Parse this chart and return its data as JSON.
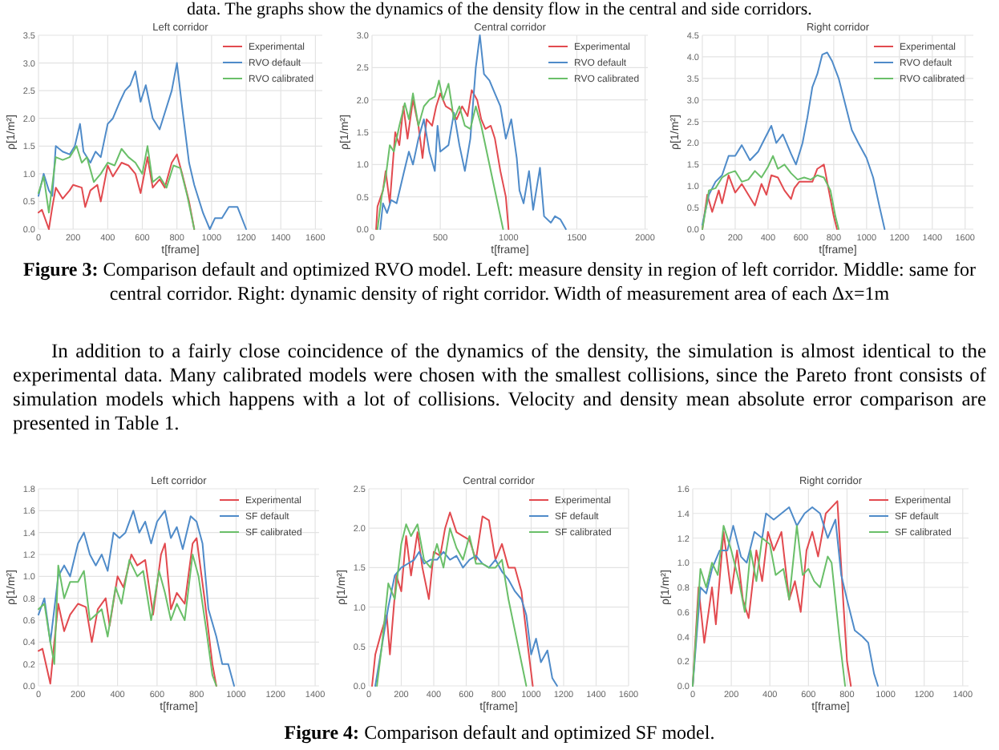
{
  "chart_data": [
    {
      "type": "line",
      "title": "Left corridor",
      "xlabel": "t[frame]",
      "ylabel": "ρ[1/m²]",
      "grid": true,
      "legend": "top right",
      "xlim": [
        0,
        1640
      ],
      "xticks": [
        0,
        200,
        400,
        600,
        800,
        1000,
        1200,
        1400,
        1600
      ],
      "ylim": [
        0,
        3.5
      ],
      "yticks": [
        {
          "value": 0,
          "label": "0.0"
        },
        0.5,
        {
          "value": 1,
          "label": "1.0"
        },
        1.5,
        {
          "value": 2,
          "label": "2.0"
        },
        2.5,
        {
          "value": 3,
          "label": "3.0"
        },
        3.5
      ],
      "annotations": [
        "data. The graphs show the dynamics of the density flow in the central and side corridors.",
        "Figure 3: Comparison default and optimized RVO model. Left: measure density in region of left corridor. Middle: same for central corridor. Right: dynamic density of right corridor. Width of measurement area of each Δx=1m",
        "In addition to a fairly close coincidence of the dynamics of the density, the simulation is almost identical to the experimental data. Many calibrated models were chosen with the smallest collisions, since the Pareto front consists of simulation models which happens with a lot of collisions. Velocity and density mean absolute error comparison are presented in Table 1."
      ],
      "series": [
        {
          "name": "Experimental",
          "color": "#e24a4f",
          "x": [
            0,
            20,
            60,
            80,
            100,
            140,
            180,
            200,
            250,
            270,
            300,
            340,
            360,
            400,
            430,
            480,
            520,
            560,
            590,
            630,
            660,
            700,
            730,
            770,
            800,
            830,
            870,
            900
          ],
          "values": [
            0.3,
            0.35,
            0.0,
            0.4,
            0.75,
            0.55,
            0.7,
            0.8,
            0.75,
            0.4,
            0.7,
            0.8,
            0.5,
            1.15,
            0.95,
            1.2,
            1.15,
            1.0,
            0.65,
            1.3,
            0.75,
            0.9,
            0.75,
            1.2,
            1.35,
            1.0,
            0.5,
            0.0
          ]
        },
        {
          "name": "RVO default",
          "color": "#4f8bc9",
          "x": [
            0,
            30,
            60,
            80,
            100,
            140,
            180,
            210,
            240,
            260,
            300,
            330,
            360,
            400,
            430,
            470,
            500,
            530,
            560,
            590,
            620,
            660,
            700,
            730,
            770,
            800,
            830,
            870,
            900,
            950,
            990,
            1020,
            1060,
            1100,
            1150,
            1200
          ],
          "values": [
            0.6,
            1.0,
            0.7,
            0.6,
            1.5,
            1.4,
            1.35,
            1.5,
            1.9,
            1.4,
            1.2,
            1.4,
            1.3,
            1.9,
            2.0,
            2.3,
            2.5,
            2.6,
            2.85,
            2.3,
            2.6,
            2.0,
            1.8,
            2.1,
            2.5,
            3.0,
            2.2,
            1.2,
            0.8,
            0.3,
            0.0,
            0.2,
            0.2,
            0.4,
            0.4,
            0.0
          ]
        },
        {
          "name": "RVO calibrated",
          "color": "#6abf69",
          "x": [
            0,
            30,
            60,
            100,
            140,
            180,
            220,
            250,
            280,
            320,
            360,
            400,
            440,
            480,
            520,
            560,
            600,
            630,
            660,
            700,
            740,
            780,
            820,
            860,
            900
          ],
          "values": [
            0.65,
            0.95,
            0.3,
            1.3,
            1.25,
            1.3,
            1.5,
            1.2,
            1.3,
            0.85,
            1.0,
            1.2,
            1.15,
            1.45,
            1.3,
            1.2,
            1.0,
            1.5,
            0.85,
            0.95,
            0.75,
            1.15,
            1.1,
            0.6,
            0.0
          ]
        }
      ]
    },
    {
      "type": "line",
      "title": "Central corridor",
      "xlabel": "t[frame]",
      "ylabel": "ρ[1/m²]",
      "grid": true,
      "legend": "top right",
      "xlim": [
        0,
        2020
      ],
      "xticks": [
        0,
        500,
        1000,
        1500,
        2000
      ],
      "ylim": [
        0,
        3.0
      ],
      "yticks": [
        {
          "value": 0,
          "label": "0.0"
        },
        0.5,
        {
          "value": 1,
          "label": "1.0"
        },
        1.5,
        {
          "value": 2,
          "label": "2.0"
        },
        2.5,
        {
          "value": 3,
          "label": "3.0"
        }
      ],
      "series": [
        {
          "name": "Experimental",
          "color": "#e24a4f",
          "x": [
            30,
            40,
            80,
            100,
            130,
            170,
            200,
            230,
            260,
            300,
            340,
            370,
            400,
            440,
            470,
            500,
            540,
            580,
            620,
            660,
            700,
            730,
            770,
            800,
            830,
            870,
            900,
            940,
            980,
            1000
          ],
          "values": [
            0.0,
            0.35,
            0.6,
            0.9,
            0.4,
            1.5,
            1.3,
            1.9,
            1.4,
            2.0,
            1.6,
            1.1,
            1.7,
            1.6,
            1.9,
            2.1,
            1.9,
            1.85,
            1.7,
            1.9,
            1.75,
            2.15,
            2.0,
            1.7,
            1.55,
            1.6,
            1.4,
            0.9,
            0.5,
            0.0
          ]
        },
        {
          "name": "RVO default",
          "color": "#4f8bc9",
          "x": [
            60,
            80,
            110,
            140,
            180,
            230,
            270,
            300,
            340,
            380,
            420,
            460,
            480,
            500,
            560,
            600,
            640,
            680,
            720,
            760,
            790,
            820,
            860,
            900,
            940,
            980,
            1020,
            1060,
            1080,
            1110,
            1150,
            1180,
            1230,
            1260,
            1310,
            1340,
            1380,
            1420
          ],
          "values": [
            0.0,
            0.4,
            0.25,
            0.45,
            0.4,
            0.85,
            1.2,
            1.0,
            1.4,
            1.7,
            1.2,
            0.9,
            1.6,
            1.2,
            1.3,
            1.8,
            1.3,
            0.9,
            1.4,
            2.5,
            3.0,
            2.4,
            2.3,
            2.1,
            1.9,
            1.4,
            1.7,
            1.1,
            0.6,
            0.4,
            0.9,
            0.3,
            0.95,
            0.2,
            0.1,
            0.2,
            0.15,
            0.0
          ]
        },
        {
          "name": "RVO calibrated",
          "color": "#6abf69",
          "x": [
            40,
            70,
            100,
            130,
            160,
            200,
            240,
            270,
            300,
            340,
            380,
            420,
            460,
            490,
            520,
            560,
            600,
            640,
            680,
            720,
            760,
            800,
            840,
            880,
            920,
            960
          ],
          "values": [
            0.0,
            0.5,
            0.8,
            1.3,
            1.2,
            1.6,
            1.95,
            1.7,
            2.1,
            1.6,
            1.9,
            2.0,
            2.05,
            2.3,
            2.0,
            2.25,
            1.7,
            1.9,
            1.6,
            1.55,
            1.9,
            1.6,
            1.2,
            0.8,
            0.4,
            0.0
          ]
        }
      ]
    },
    {
      "type": "line",
      "title": "Right corridor",
      "xlabel": "t[frame]",
      "ylabel": "ρ[1/m²]",
      "grid": true,
      "legend": "top right",
      "xlim": [
        0,
        1650
      ],
      "xticks": [
        0,
        200,
        400,
        600,
        800,
        1000,
        1200,
        1400,
        1600
      ],
      "ylim": [
        0,
        4.5
      ],
      "yticks": [
        {
          "value": 0,
          "label": "0.0"
        },
        0.5,
        {
          "value": 1,
          "label": "1.0"
        },
        1.5,
        {
          "value": 2,
          "label": "2.0"
        },
        2.5,
        {
          "value": 3,
          "label": "3.0"
        },
        3.5,
        {
          "value": 4,
          "label": "4.0"
        },
        4.5
      ],
      "series": [
        {
          "name": "Experimental",
          "color": "#e24a4f",
          "x": [
            0,
            30,
            60,
            100,
            120,
            160,
            200,
            240,
            280,
            320,
            360,
            390,
            420,
            460,
            500,
            540,
            560,
            590,
            630,
            670,
            700,
            740,
            770,
            800,
            820
          ],
          "values": [
            0.0,
            0.8,
            0.4,
            0.9,
            0.6,
            1.25,
            0.85,
            1.05,
            0.8,
            0.55,
            1.05,
            0.8,
            1.25,
            1.2,
            0.9,
            0.7,
            0.95,
            1.1,
            1.1,
            1.1,
            1.4,
            1.5,
            0.9,
            0.3,
            0.0
          ]
        },
        {
          "name": "RVO default",
          "color": "#4f8bc9",
          "x": [
            0,
            40,
            80,
            120,
            160,
            200,
            240,
            290,
            340,
            380,
            420,
            450,
            490,
            540,
            570,
            610,
            640,
            670,
            700,
            730,
            760,
            790,
            830,
            870,
            910,
            950,
            1000,
            1040,
            1080,
            1110
          ],
          "values": [
            0.1,
            0.8,
            1.1,
            1.25,
            1.7,
            1.7,
            1.95,
            1.6,
            1.8,
            2.1,
            2.4,
            2.0,
            2.2,
            1.75,
            1.5,
            2.0,
            2.6,
            3.3,
            3.6,
            4.05,
            4.1,
            3.9,
            3.5,
            2.9,
            2.3,
            2.0,
            1.65,
            1.2,
            0.5,
            0.0
          ]
        },
        {
          "name": "RVO calibrated",
          "color": "#6abf69",
          "x": [
            0,
            40,
            80,
            120,
            160,
            200,
            240,
            280,
            320,
            360,
            400,
            430,
            460,
            500,
            540,
            580,
            620,
            660,
            700,
            740,
            780,
            810,
            830
          ],
          "values": [
            0.0,
            0.9,
            0.95,
            1.2,
            1.3,
            1.35,
            1.1,
            1.15,
            1.35,
            1.2,
            1.45,
            1.7,
            1.4,
            1.5,
            1.3,
            1.15,
            1.2,
            1.15,
            1.25,
            1.2,
            0.9,
            0.3,
            0.0
          ]
        }
      ]
    },
    {
      "type": "line",
      "title": "Left corridor",
      "xlabel": "t[frame]",
      "ylabel": "ρ[1/m²]",
      "grid": true,
      "legend": "top right",
      "xlim": [
        0,
        1420
      ],
      "xticks": [
        0,
        200,
        400,
        600,
        800,
        1000,
        1200,
        1400
      ],
      "ylim": [
        0,
        1.8
      ],
      "yticks": [
        {
          "value": 0,
          "label": "0.0"
        },
        0.2,
        0.4,
        0.6,
        0.8,
        {
          "value": 1,
          "label": "1.0"
        },
        1.2,
        1.4,
        1.6,
        1.8
      ],
      "annotations": [
        "Figure 4: Comparison default and optimized SF model."
      ],
      "series": [
        {
          "name": "Experimental",
          "color": "#e24a4f",
          "x": [
            0,
            20,
            60,
            80,
            100,
            130,
            160,
            200,
            240,
            270,
            300,
            340,
            360,
            400,
            430,
            470,
            500,
            540,
            580,
            620,
            640,
            670,
            700,
            740,
            780,
            800,
            840,
            880,
            900
          ],
          "values": [
            0.32,
            0.34,
            0.02,
            0.4,
            0.75,
            0.5,
            0.65,
            0.75,
            0.72,
            0.4,
            0.7,
            0.8,
            0.55,
            1.0,
            0.9,
            1.2,
            1.1,
            1.15,
            0.65,
            1.2,
            1.3,
            0.7,
            0.85,
            0.75,
            1.3,
            1.35,
            0.8,
            0.2,
            0.0
          ]
        },
        {
          "name": "SF default",
          "color": "#4f8bc9",
          "x": [
            0,
            30,
            60,
            80,
            100,
            130,
            160,
            200,
            230,
            260,
            290,
            320,
            350,
            380,
            410,
            440,
            480,
            510,
            540,
            570,
            600,
            640,
            670,
            700,
            730,
            770,
            800,
            830,
            860,
            900,
            930,
            960,
            990
          ],
          "values": [
            0.65,
            0.8,
            0.4,
            0.7,
            1.0,
            1.1,
            1.0,
            1.3,
            1.4,
            1.2,
            1.1,
            1.2,
            1.05,
            1.4,
            1.35,
            1.4,
            1.6,
            1.4,
            1.5,
            1.3,
            1.5,
            1.6,
            1.35,
            1.45,
            1.25,
            1.55,
            1.5,
            1.3,
            0.7,
            0.45,
            0.2,
            0.2,
            0.0
          ]
        },
        {
          "name": "SF calibrated",
          "color": "#6abf69",
          "x": [
            0,
            30,
            60,
            80,
            100,
            130,
            160,
            200,
            230,
            260,
            290,
            320,
            350,
            390,
            420,
            460,
            500,
            530,
            570,
            610,
            640,
            670,
            700,
            740,
            780,
            810,
            850,
            880,
            900
          ],
          "values": [
            0.7,
            0.75,
            0.4,
            0.2,
            1.1,
            0.8,
            0.95,
            0.95,
            1.05,
            0.6,
            0.65,
            0.7,
            0.45,
            0.9,
            0.75,
            1.15,
            1.0,
            1.05,
            0.6,
            1.05,
            0.85,
            0.6,
            0.75,
            0.6,
            1.2,
            1.0,
            0.5,
            0.1,
            0.0
          ]
        }
      ]
    },
    {
      "type": "line",
      "title": "Central corridor",
      "xlabel": "t[frame]",
      "ylabel": "ρ[1/m²]",
      "grid": true,
      "legend": "top right",
      "xlim": [
        0,
        1600
      ],
      "xticks": [
        0,
        200,
        400,
        600,
        800,
        1000,
        1200,
        1400,
        1600
      ],
      "ylim": [
        0,
        2.5
      ],
      "yticks": [
        {
          "value": 0,
          "label": "0.0"
        },
        0.5,
        {
          "value": 1,
          "label": "1.0"
        },
        1.5,
        {
          "value": 2,
          "label": "2.0"
        },
        2.5
      ],
      "series": [
        {
          "name": "Experimental",
          "color": "#e24a4f",
          "x": [
            20,
            40,
            80,
            110,
            130,
            170,
            200,
            230,
            260,
            300,
            330,
            370,
            400,
            440,
            470,
            500,
            540,
            580,
            620,
            660,
            700,
            740,
            780,
            820,
            860,
            900,
            940,
            980,
            1010
          ],
          "values": [
            0.0,
            0.4,
            0.7,
            0.9,
            0.4,
            1.4,
            1.2,
            1.9,
            1.4,
            1.95,
            1.5,
            1.1,
            1.7,
            1.65,
            2.0,
            2.2,
            1.95,
            1.9,
            1.85,
            1.6,
            2.15,
            2.1,
            1.6,
            1.8,
            1.5,
            1.5,
            1.2,
            0.5,
            0.0
          ]
        },
        {
          "name": "SF default",
          "color": "#4f8bc9",
          "x": [
            40,
            80,
            120,
            160,
            200,
            240,
            280,
            310,
            340,
            380,
            420,
            460,
            500,
            540,
            580,
            620,
            660,
            700,
            740,
            780,
            820,
            860,
            900,
            940,
            970,
            1000,
            1030,
            1060,
            1100,
            1130,
            1160
          ],
          "values": [
            0.0,
            0.5,
            1.0,
            1.4,
            1.5,
            1.55,
            1.6,
            1.7,
            1.55,
            1.6,
            1.6,
            1.7,
            1.6,
            1.65,
            1.5,
            1.6,
            1.65,
            1.55,
            1.5,
            1.6,
            1.45,
            1.35,
            1.2,
            1.1,
            0.9,
            0.4,
            0.6,
            0.3,
            0.45,
            0.1,
            0.0
          ]
        },
        {
          "name": "SF calibrated",
          "color": "#6abf69",
          "x": [
            50,
            80,
            120,
            160,
            200,
            230,
            260,
            300,
            340,
            380,
            420,
            460,
            500,
            540,
            580,
            620,
            660,
            700,
            740,
            780,
            820,
            860,
            900,
            940,
            970
          ],
          "values": [
            0.0,
            0.5,
            1.3,
            1.1,
            1.8,
            2.05,
            1.9,
            2.05,
            1.6,
            1.5,
            1.8,
            1.5,
            2.0,
            1.75,
            1.6,
            1.9,
            1.55,
            1.55,
            1.5,
            1.5,
            1.6,
            1.1,
            0.7,
            0.3,
            0.0
          ]
        }
      ]
    },
    {
      "type": "line",
      "title": "Right corridor",
      "xlabel": "t[frame]",
      "ylabel": "ρ[1/m²]",
      "grid": true,
      "legend": "top right",
      "xlim": [
        0,
        1430
      ],
      "xticks": [
        0,
        200,
        400,
        600,
        800,
        1000,
        1200,
        1400
      ],
      "ylim": [
        0,
        1.6
      ],
      "yticks": [
        {
          "value": 0,
          "label": "0.0"
        },
        0.2,
        0.4,
        0.6,
        0.8,
        {
          "value": 1,
          "label": "1.0"
        },
        1.2,
        1.4,
        1.6
      ],
      "series": [
        {
          "name": "Experimental",
          "color": "#e24a4f",
          "x": [
            0,
            30,
            60,
            100,
            120,
            160,
            200,
            230,
            260,
            290,
            330,
            360,
            390,
            420,
            460,
            500,
            530,
            560,
            590,
            620,
            650,
            690,
            720,
            750,
            780,
            800,
            820
          ],
          "values": [
            0.0,
            0.8,
            0.35,
            0.8,
            0.5,
            1.25,
            0.75,
            1.1,
            0.7,
            0.55,
            1.1,
            0.85,
            1.25,
            1.1,
            1.25,
            0.7,
            0.85,
            0.6,
            1.1,
            1.25,
            1.05,
            1.4,
            1.45,
            1.5,
            0.7,
            0.2,
            0.0
          ]
        },
        {
          "name": "SF default",
          "color": "#4f8bc9",
          "x": [
            0,
            40,
            70,
            100,
            140,
            180,
            210,
            250,
            280,
            320,
            360,
            380,
            420,
            460,
            500,
            540,
            580,
            620,
            660,
            700,
            740,
            770,
            800,
            840,
            880,
            910,
            940,
            960
          ],
          "values": [
            0.0,
            0.8,
            0.75,
            0.95,
            1.1,
            1.1,
            1.3,
            1.05,
            1.0,
            1.25,
            1.2,
            1.4,
            1.35,
            1.4,
            1.45,
            1.3,
            1.4,
            1.45,
            1.4,
            1.2,
            1.35,
            0.9,
            0.7,
            0.45,
            0.4,
            0.35,
            0.1,
            0.0
          ]
        },
        {
          "name": "SF calibrated",
          "color": "#6abf69",
          "x": [
            0,
            40,
            70,
            100,
            130,
            160,
            200,
            240,
            270,
            300,
            330,
            360,
            400,
            430,
            470,
            500,
            540,
            570,
            600,
            630,
            660,
            700,
            720,
            760,
            790
          ],
          "values": [
            0.0,
            0.95,
            0.8,
            1.0,
            0.9,
            1.3,
            1.1,
            0.85,
            0.6,
            1.1,
            0.85,
            1.2,
            1.15,
            0.9,
            0.95,
            0.7,
            1.3,
            0.9,
            0.95,
            0.85,
            0.8,
            1.05,
            1.0,
            0.4,
            0.0
          ]
        }
      ]
    }
  ]
}
